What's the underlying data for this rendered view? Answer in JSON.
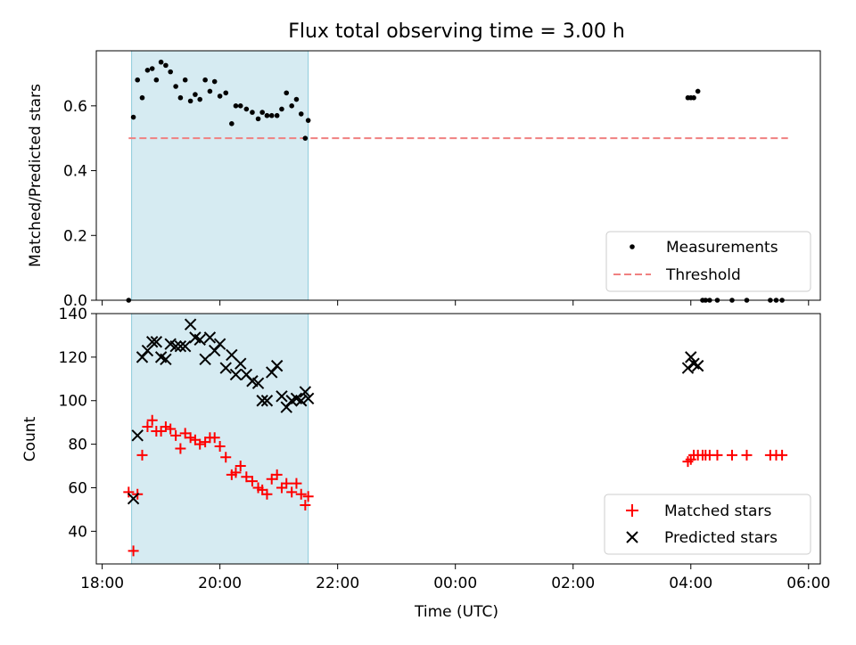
{
  "chart_data": {
    "type": "scatter",
    "title": "Flux total observing time = 3.00 h",
    "xlabel": "Time (UTC)",
    "xlim": [
      17.9,
      30.2
    ],
    "xtick_values": [
      18,
      20,
      22,
      24,
      26,
      28,
      30
    ],
    "xtick_labels": [
      "18:00",
      "20:00",
      "22:00",
      "00:00",
      "02:00",
      "04:00",
      "06:00"
    ],
    "observing_window": [
      18.5,
      21.5
    ],
    "panels": [
      {
        "name": "ratio",
        "ylabel": "Matched/Predicted stars",
        "ylim": [
          0,
          0.77
        ],
        "yticks": [
          0.0,
          0.2,
          0.4,
          0.6
        ],
        "ytick_labels": [
          "0.0",
          "0.2",
          "0.4",
          "0.6"
        ],
        "legend": {
          "position": "bottom-right",
          "entries": [
            "Measurements",
            "Threshold"
          ]
        },
        "threshold": {
          "label": "Threshold",
          "value": 0.5,
          "x_range": [
            18.45,
            29.65
          ],
          "color": "#f08080"
        },
        "series": [
          {
            "name": "Measurements",
            "marker": "dot",
            "color": "#000000",
            "x": [
              18.45,
              18.53,
              18.6,
              18.68,
              18.77,
              18.85,
              18.92,
              19.0,
              19.08,
              19.16,
              19.25,
              19.33,
              19.41,
              19.5,
              19.58,
              19.66,
              19.75,
              19.83,
              19.91,
              20.0,
              20.1,
              20.2,
              20.27,
              20.35,
              20.45,
              20.55,
              20.65,
              20.72,
              20.8,
              20.88,
              20.97,
              21.05,
              21.13,
              21.22,
              21.3,
              21.38,
              21.45,
              21.5,
              27.95,
              28.0,
              28.05,
              28.12,
              28.2,
              28.25,
              28.32,
              28.45,
              28.7,
              28.95,
              29.35,
              29.45,
              29.55
            ],
            "y": [
              0.0,
              0.565,
              0.68,
              0.625,
              0.71,
              0.715,
              0.68,
              0.735,
              0.725,
              0.705,
              0.66,
              0.625,
              0.68,
              0.615,
              0.635,
              0.62,
              0.68,
              0.645,
              0.675,
              0.63,
              0.64,
              0.545,
              0.6,
              0.6,
              0.59,
              0.58,
              0.56,
              0.58,
              0.57,
              0.57,
              0.57,
              0.59,
              0.64,
              0.6,
              0.62,
              0.575,
              0.5,
              0.555,
              0.625,
              0.625,
              0.625,
              0.645,
              0.0,
              0.0,
              0.0,
              0.0,
              0.0,
              0.0,
              0.0,
              0.0,
              0.0
            ]
          }
        ]
      },
      {
        "name": "count",
        "ylabel": "Count",
        "ylim": [
          25,
          140
        ],
        "yticks": [
          40,
          60,
          80,
          100,
          120,
          140
        ],
        "ytick_labels": [
          "40",
          "60",
          "80",
          "100",
          "120",
          "140"
        ],
        "legend": {
          "position": "bottom-right",
          "entries": [
            "Matched stars",
            "Predicted stars"
          ]
        },
        "series": [
          {
            "name": "Matched stars",
            "marker": "plus",
            "color": "#ff0000",
            "x": [
              18.45,
              18.53,
              18.6,
              18.68,
              18.77,
              18.85,
              18.92,
              19.0,
              19.08,
              19.16,
              19.25,
              19.33,
              19.41,
              19.5,
              19.58,
              19.66,
              19.75,
              19.83,
              19.91,
              20.0,
              20.1,
              20.2,
              20.27,
              20.35,
              20.45,
              20.55,
              20.65,
              20.72,
              20.8,
              20.88,
              20.97,
              21.05,
              21.13,
              21.22,
              21.3,
              21.38,
              21.45,
              21.5,
              27.95,
              28.0,
              28.05,
              28.12,
              28.2,
              28.25,
              28.32,
              28.45,
              28.7,
              28.95,
              29.35,
              29.45,
              29.55
            ],
            "y": [
              58,
              31,
              57,
              75,
              88,
              91,
              86,
              86,
              88,
              87,
              84,
              78,
              85,
              83,
              82,
              80,
              81,
              83,
              83,
              79,
              74,
              66,
              67,
              70,
              65,
              63,
              60,
              59,
              57,
              64,
              66,
              60,
              62,
              58,
              62,
              57,
              52,
              56,
              72,
              73,
              75,
              75,
              75,
              75,
              75,
              75,
              75,
              75,
              75,
              75,
              75
            ]
          },
          {
            "name": "Predicted stars",
            "marker": "x",
            "color": "#000000",
            "x": [
              18.53,
              18.6,
              18.68,
              18.77,
              18.85,
              18.92,
              19.0,
              19.08,
              19.16,
              19.25,
              19.33,
              19.41,
              19.5,
              19.58,
              19.66,
              19.75,
              19.83,
              19.91,
              20.0,
              20.1,
              20.2,
              20.27,
              20.35,
              20.45,
              20.55,
              20.65,
              20.72,
              20.8,
              20.88,
              20.97,
              21.05,
              21.13,
              21.22,
              21.3,
              21.38,
              21.45,
              21.5,
              27.95,
              28.0,
              28.05,
              28.12
            ],
            "y": [
              55,
              84,
              120,
              123,
              127,
              127,
              120,
              119,
              126,
              125,
              125,
              125,
              135,
              129,
              128,
              119,
              129,
              123,
              126,
              115,
              121,
              112,
              117,
              112,
              109,
              108,
              100,
              100,
              113,
              116,
              102,
              97,
              100,
              101,
              100,
              104,
              101,
              115,
              120,
              117,
              116
            ]
          }
        ]
      }
    ]
  }
}
